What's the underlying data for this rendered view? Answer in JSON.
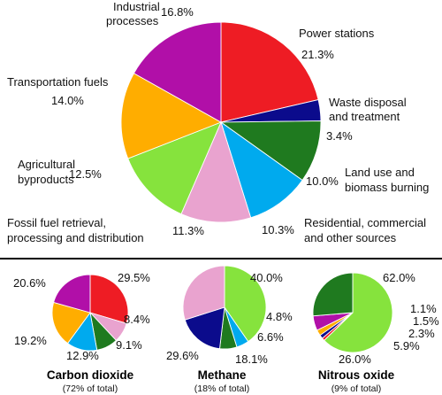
{
  "chart_data": [
    {
      "type": "pie",
      "title": "",
      "colors": {
        "Power stations": "#ee1c24",
        "Waste disposal and treatment": "#0b0b8c",
        "Land use and biomass burning": "#1f7a1f",
        "Residential, commercial and other sources": "#00aaee",
        "Fossil fuel retrieval, processing and distribution": "#e9a3cf",
        "Agricultural byproducts": "#86e33d",
        "Transportation fuels": "#ffad00",
        "Industrial processes": "#b10fa8"
      },
      "slices": [
        {
          "label_lines": [
            "Power stations"
          ],
          "value": 21.3,
          "value_label": "21.3%"
        },
        {
          "label_lines": [
            "Waste disposal",
            "and treatment"
          ],
          "value": 3.4,
          "value_label": "3.4%"
        },
        {
          "label_lines": [
            "Land use and",
            "biomass burning"
          ],
          "value": 10.0,
          "value_label": "10.0%"
        },
        {
          "label_lines": [
            "Residential, commercial",
            "and other sources"
          ],
          "value": 10.3,
          "value_label": "10.3%"
        },
        {
          "label_lines": [
            "Fossil fuel retrieval,",
            "processing and distribution"
          ],
          "value": 11.3,
          "value_label": "11.3%"
        },
        {
          "label_lines": [
            "Agricultural",
            "byproducts"
          ],
          "value": 12.5,
          "value_label": "12.5%"
        },
        {
          "label_lines": [
            "Transportation fuels"
          ],
          "value": 14.0,
          "value_label": "14.0%"
        },
        {
          "label_lines": [
            "Industrial",
            "processes"
          ],
          "value": 16.8,
          "value_label": "16.8%"
        }
      ]
    },
    {
      "type": "pie",
      "title": "Carbon dioxide",
      "subtitle": "(72% of total)",
      "slices": [
        {
          "category": "Power stations",
          "value": 29.5,
          "value_label": "29.5%"
        },
        {
          "category": "Fossil fuel retrieval, processing and distribution",
          "value": 8.4,
          "value_label": "8.4%"
        },
        {
          "category": "Land use and biomass burning",
          "value": 9.1,
          "value_label": "9.1%"
        },
        {
          "category": "Residential, commercial and other sources",
          "value": 12.9,
          "value_label": "12.9%"
        },
        {
          "category": "Transportation fuels",
          "value": 19.2,
          "value_label": "19.2%"
        },
        {
          "category": "Industrial processes",
          "value": 20.6,
          "value_label": "20.6%"
        }
      ]
    },
    {
      "type": "pie",
      "title": "Methane",
      "subtitle": "(18% of total)",
      "slices": [
        {
          "category": "Agricultural byproducts",
          "value": 40.0,
          "value_label": "40.0%"
        },
        {
          "category": "Residential, commercial and other sources",
          "value": 4.8,
          "value_label": "4.8%"
        },
        {
          "category": "Land use and biomass burning",
          "value": 6.6,
          "value_label": "6.6%"
        },
        {
          "category": "Waste disposal and treatment",
          "value": 18.1,
          "value_label": "18.1%"
        },
        {
          "category": "Fossil fuel retrieval, processing and distribution",
          "value": 29.6,
          "value_label": "29.6%"
        }
      ]
    },
    {
      "type": "pie",
      "title": "Nitrous oxide",
      "subtitle": "(9% of total)",
      "slices": [
        {
          "category": "Agricultural byproducts",
          "value": 62.0,
          "value_label": "62.0%"
        },
        {
          "category": "Power stations",
          "value": 1.1,
          "value_label": "1.1%"
        },
        {
          "category": "Waste disposal and treatment",
          "value": 1.5,
          "value_label": "1.5%"
        },
        {
          "category": "Transportation fuels",
          "value": 2.3,
          "value_label": "2.3%"
        },
        {
          "category": "Industrial processes",
          "value": 5.9,
          "value_label": "5.9%"
        },
        {
          "category": "Land use and biomass burning",
          "value": 26.0,
          "value_label": "26.0%"
        }
      ]
    }
  ]
}
